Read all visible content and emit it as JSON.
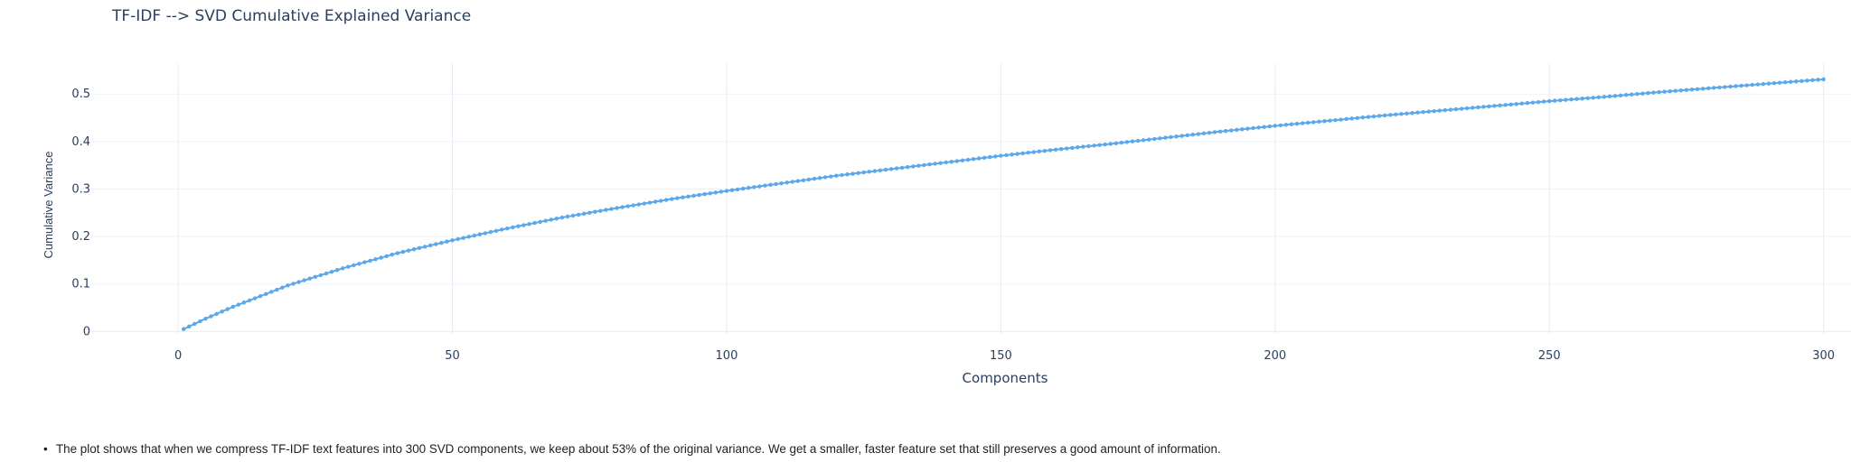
{
  "chart_data": {
    "type": "line",
    "title": "TF-IDF --> SVD Cumulative Explained Variance",
    "xlabel": "Components",
    "ylabel": "Cumulative Variance",
    "xlim": [
      -16,
      305
    ],
    "ylim": [
      -0.005,
      0.565
    ],
    "x_ticks": [
      0,
      50,
      100,
      150,
      200,
      250,
      300
    ],
    "y_ticks": [
      0,
      0.1,
      0.2,
      0.3,
      0.4,
      0.5
    ],
    "x_tick_labels": [
      "0",
      "50",
      "100",
      "150",
      "200",
      "250",
      "300"
    ],
    "y_tick_labels": [
      "0",
      "0.1",
      "0.2",
      "0.3",
      "0.4",
      "0.5"
    ],
    "grid": true,
    "legend": "none",
    "markers": true,
    "series": [
      {
        "color": "#5ba8ec",
        "x_start": 1,
        "x_end": 300,
        "anchors": [
          [
            1,
            0.005
          ],
          [
            5,
            0.027
          ],
          [
            10,
            0.052
          ],
          [
            20,
            0.097
          ],
          [
            30,
            0.133
          ],
          [
            40,
            0.165
          ],
          [
            50,
            0.192
          ],
          [
            60,
            0.217
          ],
          [
            70,
            0.24
          ],
          [
            80,
            0.26
          ],
          [
            90,
            0.279
          ],
          [
            100,
            0.296
          ],
          [
            110,
            0.312
          ],
          [
            120,
            0.328
          ],
          [
            130,
            0.342
          ],
          [
            140,
            0.356
          ],
          [
            150,
            0.37
          ],
          [
            160,
            0.383
          ],
          [
            170,
            0.395
          ],
          [
            180,
            0.408
          ],
          [
            190,
            0.421
          ],
          [
            200,
            0.433
          ],
          [
            210,
            0.444
          ],
          [
            220,
            0.455
          ],
          [
            230,
            0.465
          ],
          [
            240,
            0.475
          ],
          [
            250,
            0.485
          ],
          [
            260,
            0.494
          ],
          [
            270,
            0.504
          ],
          [
            280,
            0.513
          ],
          [
            290,
            0.522
          ],
          [
            300,
            0.531
          ]
        ]
      }
    ]
  },
  "note": {
    "bullet": "•",
    "text": "The plot shows that when we compress TF-IDF text features into 300 SVD components, we keep about 53% of the original variance. We get a smaller, faster feature set that still preserves a good amount of information."
  }
}
